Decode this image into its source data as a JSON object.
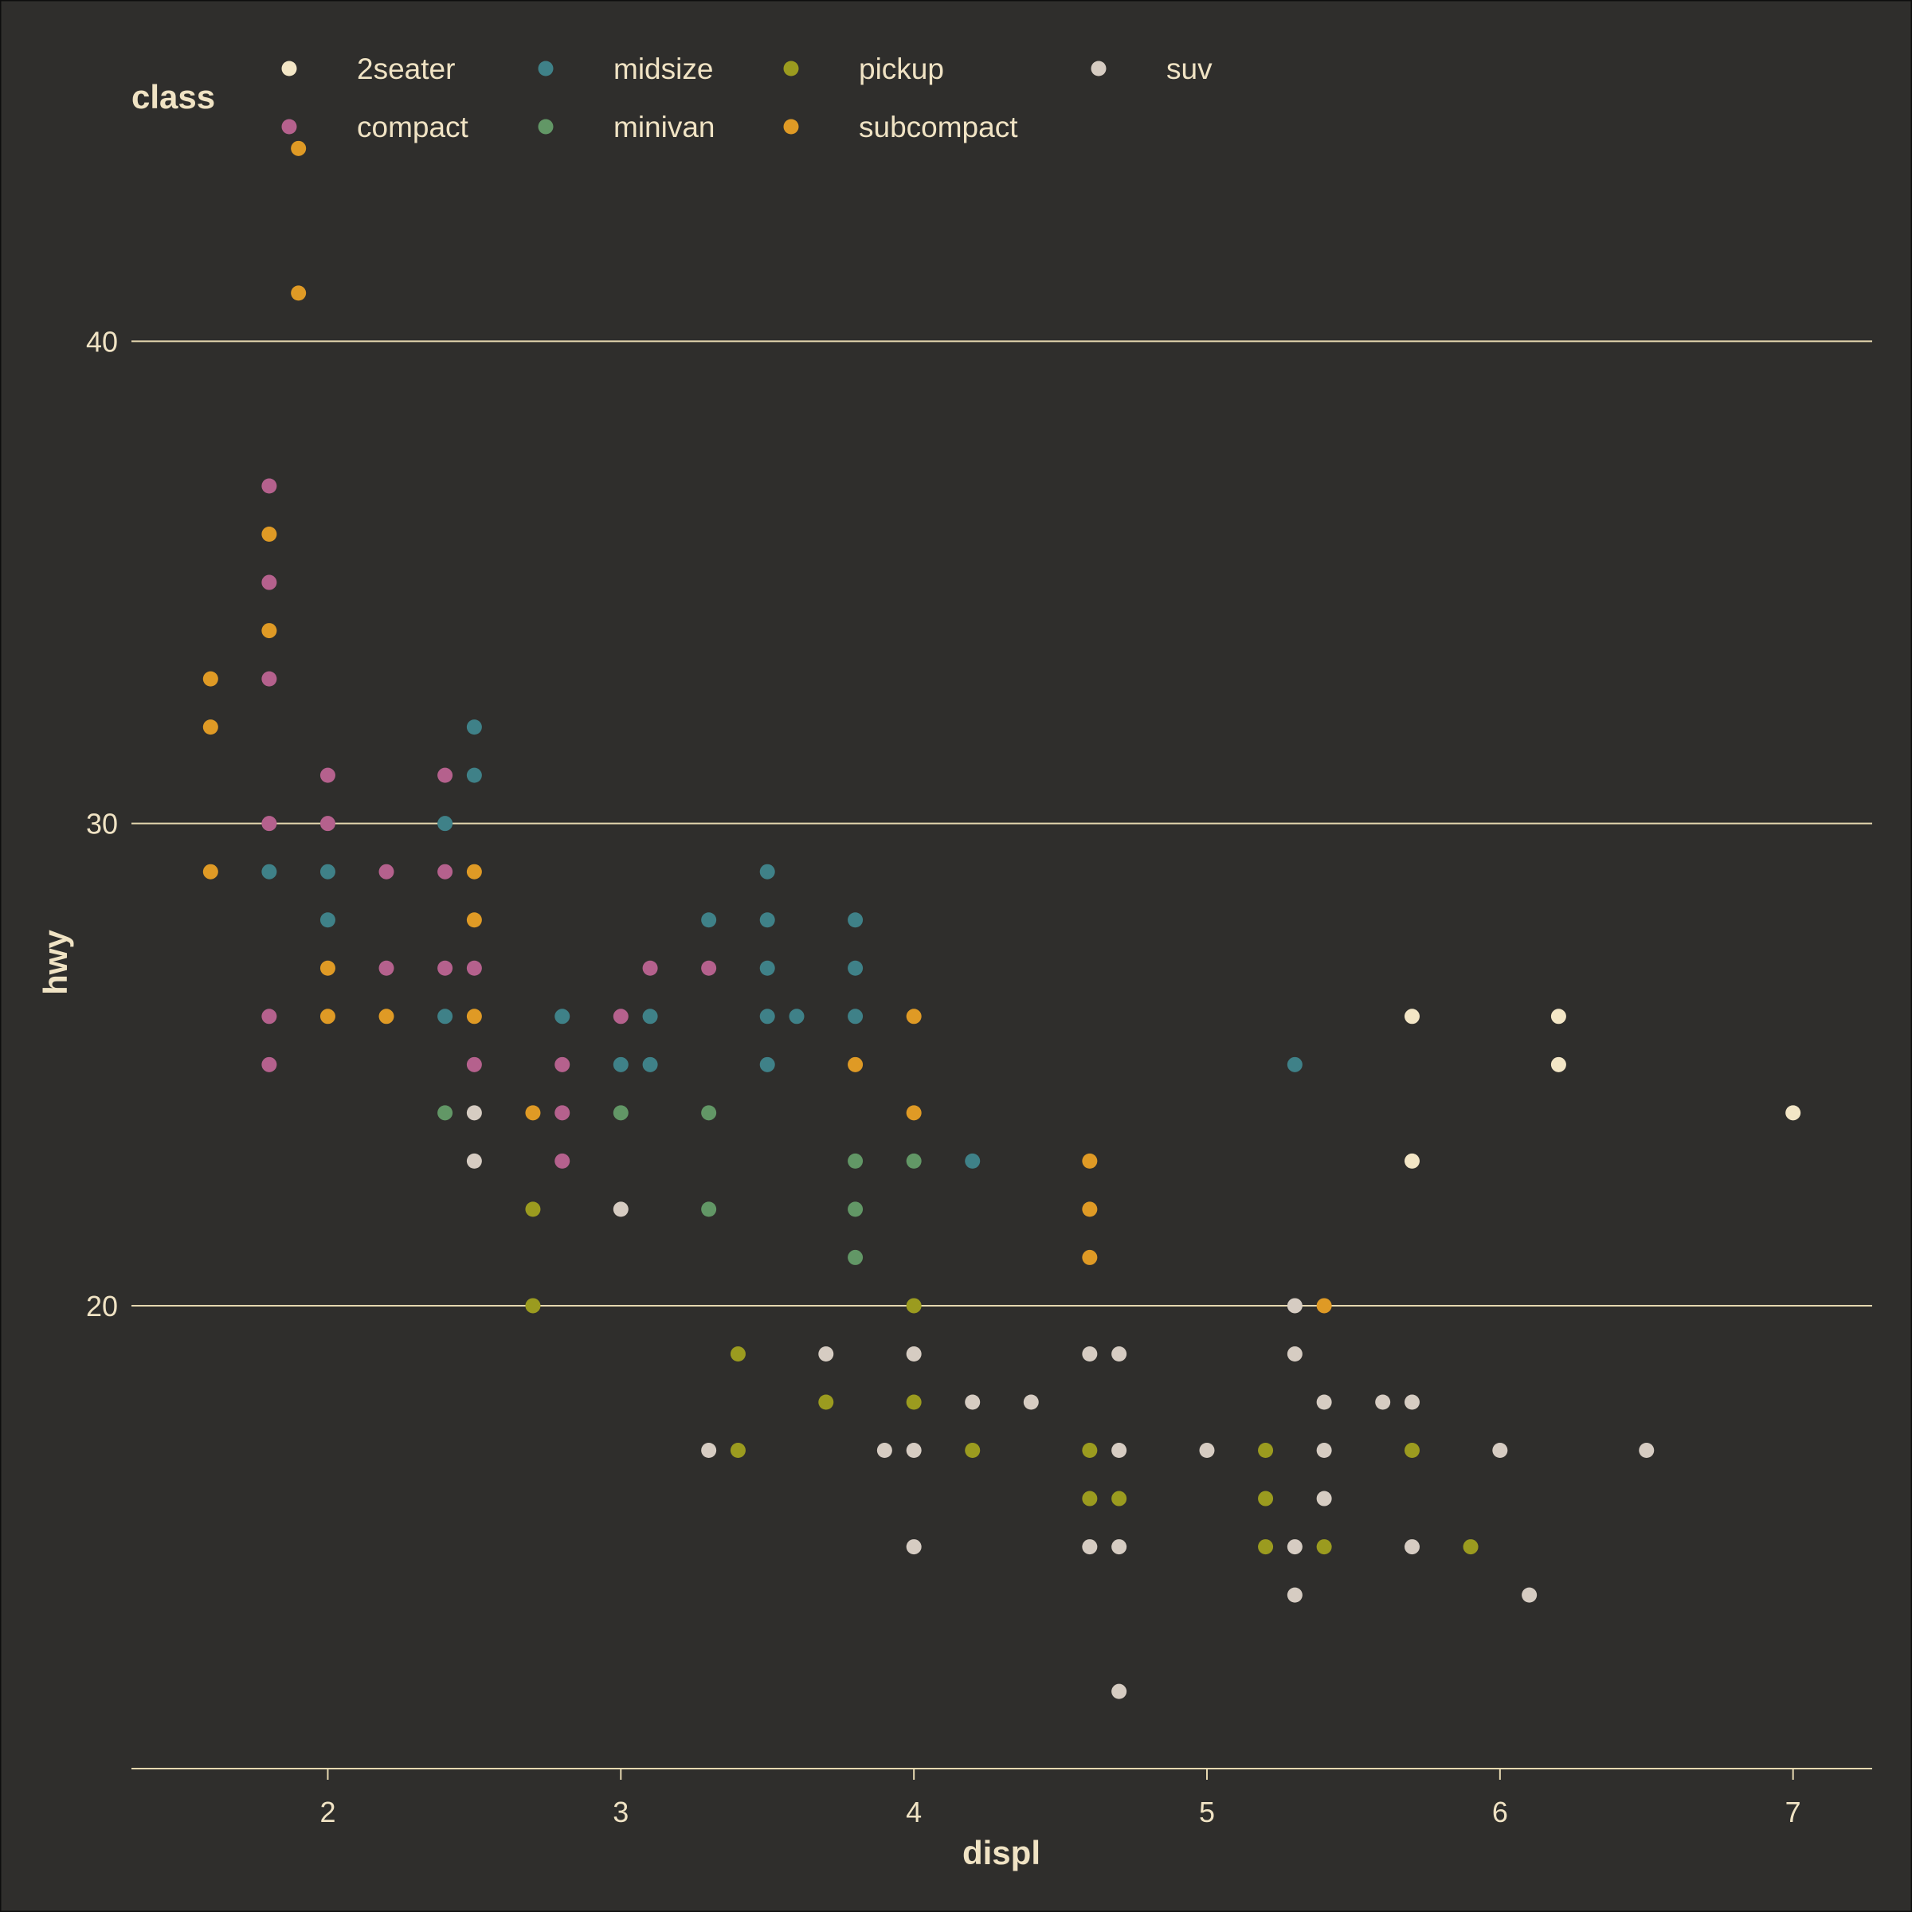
{
  "chart_data": {
    "type": "scatter",
    "title": "",
    "xlabel": "displ",
    "ylabel": "hwy",
    "xlim": [
      1.33,
      7.27
    ],
    "ylim": [
      10.4,
      44.6
    ],
    "x_ticks": [
      2,
      3,
      4,
      5,
      6,
      7
    ],
    "y_ticks": [
      20,
      30,
      40
    ],
    "grid": "horizontal major",
    "legend": {
      "title": "class",
      "position": "top",
      "entries": [
        "2seater",
        "compact",
        "midsize",
        "minivan",
        "pickup",
        "subcompact",
        "suv"
      ]
    },
    "colors": {
      "2seater": "#f3e6c6",
      "compact": "#b5618d",
      "midsize": "#3f8188",
      "minivan": "#629766",
      "pickup": "#9b9b1f",
      "subcompact": "#df9a25",
      "suv": "#d6ccc2",
      "background": "#2f2e2c",
      "grid": "#e6d8b0",
      "text": "#f0e3c4"
    },
    "series": [
      {
        "name": "2seater",
        "points": [
          [
            5.7,
            26
          ],
          [
            5.7,
            23
          ],
          [
            6.2,
            26
          ],
          [
            6.2,
            25
          ],
          [
            7.0,
            24
          ]
        ]
      },
      {
        "name": "compact",
        "points": [
          [
            1.8,
            37
          ],
          [
            1.8,
            35
          ],
          [
            1.8,
            33
          ],
          [
            1.8,
            30
          ],
          [
            1.8,
            26
          ],
          [
            1.8,
            25
          ],
          [
            2.0,
            31
          ],
          [
            2.0,
            30
          ],
          [
            2.2,
            29
          ],
          [
            2.2,
            27
          ],
          [
            2.4,
            31
          ],
          [
            2.4,
            29
          ],
          [
            2.4,
            27
          ],
          [
            2.5,
            27
          ],
          [
            2.5,
            25
          ],
          [
            2.8,
            25
          ],
          [
            2.8,
            24
          ],
          [
            2.8,
            23
          ],
          [
            3.0,
            26
          ],
          [
            3.1,
            27
          ],
          [
            3.3,
            27
          ]
        ]
      },
      {
        "name": "midsize",
        "points": [
          [
            1.8,
            29
          ],
          [
            2.0,
            29
          ],
          [
            2.0,
            28
          ],
          [
            2.4,
            30
          ],
          [
            2.4,
            26
          ],
          [
            2.5,
            32
          ],
          [
            2.5,
            31
          ],
          [
            2.8,
            26
          ],
          [
            3.0,
            25
          ],
          [
            3.1,
            26
          ],
          [
            3.1,
            25
          ],
          [
            3.3,
            28
          ],
          [
            3.5,
            29
          ],
          [
            3.5,
            28
          ],
          [
            3.5,
            27
          ],
          [
            3.5,
            26
          ],
          [
            3.5,
            25
          ],
          [
            3.6,
            26
          ],
          [
            3.8,
            28
          ],
          [
            3.8,
            27
          ],
          [
            3.8,
            26
          ],
          [
            4.2,
            23
          ],
          [
            5.3,
            25
          ]
        ]
      },
      {
        "name": "minivan",
        "points": [
          [
            2.4,
            24
          ],
          [
            3.0,
            24
          ],
          [
            3.3,
            24
          ],
          [
            3.3,
            22
          ],
          [
            3.8,
            23
          ],
          [
            3.8,
            22
          ],
          [
            3.8,
            21
          ],
          [
            4.0,
            23
          ]
        ]
      },
      {
        "name": "pickup",
        "points": [
          [
            2.7,
            22
          ],
          [
            2.7,
            20
          ],
          [
            3.4,
            19
          ],
          [
            3.4,
            17
          ],
          [
            3.7,
            18
          ],
          [
            4.0,
            20
          ],
          [
            4.0,
            18
          ],
          [
            4.2,
            17
          ],
          [
            4.6,
            17
          ],
          [
            4.6,
            16
          ],
          [
            4.7,
            16
          ],
          [
            5.2,
            17
          ],
          [
            5.2,
            16
          ],
          [
            5.2,
            15
          ],
          [
            5.4,
            15
          ],
          [
            5.7,
            17
          ],
          [
            5.9,
            15
          ]
        ]
      },
      {
        "name": "subcompact",
        "points": [
          [
            1.6,
            33
          ],
          [
            1.6,
            32
          ],
          [
            1.6,
            29
          ],
          [
            1.8,
            36
          ],
          [
            1.8,
            34
          ],
          [
            1.9,
            44
          ],
          [
            1.9,
            41
          ],
          [
            2.0,
            27
          ],
          [
            2.0,
            26
          ],
          [
            2.2,
            26
          ],
          [
            2.5,
            29
          ],
          [
            2.5,
            28
          ],
          [
            2.5,
            26
          ],
          [
            2.7,
            24
          ],
          [
            3.8,
            25
          ],
          [
            4.0,
            26
          ],
          [
            4.0,
            24
          ],
          [
            4.6,
            23
          ],
          [
            4.6,
            22
          ],
          [
            4.6,
            21
          ],
          [
            5.4,
            20
          ]
        ]
      },
      {
        "name": "suv",
        "points": [
          [
            2.5,
            24
          ],
          [
            2.5,
            23
          ],
          [
            3.0,
            22
          ],
          [
            3.3,
            17
          ],
          [
            3.7,
            19
          ],
          [
            3.9,
            17
          ],
          [
            4.0,
            19
          ],
          [
            4.0,
            17
          ],
          [
            4.0,
            15
          ],
          [
            4.2,
            18
          ],
          [
            4.4,
            18
          ],
          [
            4.6,
            19
          ],
          [
            4.6,
            15
          ],
          [
            4.7,
            19
          ],
          [
            4.7,
            17
          ],
          [
            4.7,
            15
          ],
          [
            4.7,
            12
          ],
          [
            5.0,
            17
          ],
          [
            5.3,
            20
          ],
          [
            5.3,
            19
          ],
          [
            5.3,
            15
          ],
          [
            5.3,
            14
          ],
          [
            5.4,
            18
          ],
          [
            5.4,
            17
          ],
          [
            5.4,
            16
          ],
          [
            5.6,
            18
          ],
          [
            5.7,
            18
          ],
          [
            5.7,
            15
          ],
          [
            6.0,
            17
          ],
          [
            6.1,
            14
          ],
          [
            6.5,
            17
          ]
        ]
      }
    ]
  }
}
